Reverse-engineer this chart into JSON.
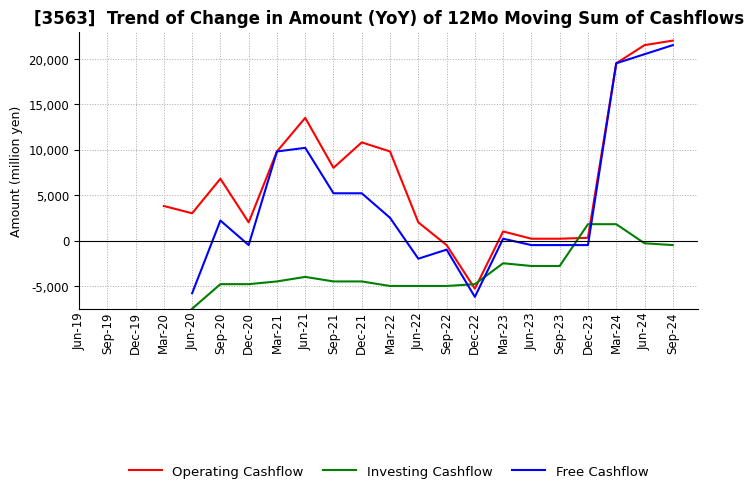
{
  "title": "[3563]  Trend of Change in Amount (YoY) of 12Mo Moving Sum of Cashflows",
  "ylabel": "Amount (million yen)",
  "ylim": [
    -7500,
    23000
  ],
  "yticks": [
    -5000,
    0,
    5000,
    10000,
    15000,
    20000
  ],
  "background_color": "#ffffff",
  "grid_color": "#aaaaaa",
  "dates": [
    "Jun-19",
    "Sep-19",
    "Dec-19",
    "Mar-20",
    "Jun-20",
    "Sep-20",
    "Dec-20",
    "Mar-21",
    "Jun-21",
    "Sep-21",
    "Dec-21",
    "Mar-22",
    "Jun-22",
    "Sep-22",
    "Dec-22",
    "Mar-23",
    "Jun-23",
    "Sep-23",
    "Dec-23",
    "Mar-24",
    "Jun-24",
    "Sep-24"
  ],
  "operating_cashflow": [
    null,
    null,
    null,
    3800,
    3000,
    6800,
    2000,
    9800,
    13500,
    8000,
    10800,
    9800,
    2000,
    -500,
    -5300,
    1000,
    200,
    200,
    300,
    19500,
    21500,
    22000
  ],
  "investing_cashflow": [
    null,
    null,
    null,
    null,
    -7500,
    -4800,
    -4800,
    -4500,
    -4000,
    -4500,
    -4500,
    -5000,
    -5000,
    -5000,
    -4800,
    -2500,
    -2800,
    -2800,
    1800,
    1800,
    -300,
    -500
  ],
  "free_cashflow": [
    null,
    null,
    null,
    null,
    -5800,
    2200,
    -500,
    9800,
    10200,
    5200,
    5200,
    2500,
    -2000,
    -1000,
    -6200,
    200,
    -500,
    -500,
    -500,
    19500,
    20500,
    21500
  ],
  "operating_color": "#ff0000",
  "investing_color": "#008000",
  "free_color": "#0000ff",
  "line_width": 1.5,
  "title_fontsize": 12,
  "tick_fontsize": 8.5,
  "ylabel_fontsize": 9,
  "legend_fontsize": 9.5
}
